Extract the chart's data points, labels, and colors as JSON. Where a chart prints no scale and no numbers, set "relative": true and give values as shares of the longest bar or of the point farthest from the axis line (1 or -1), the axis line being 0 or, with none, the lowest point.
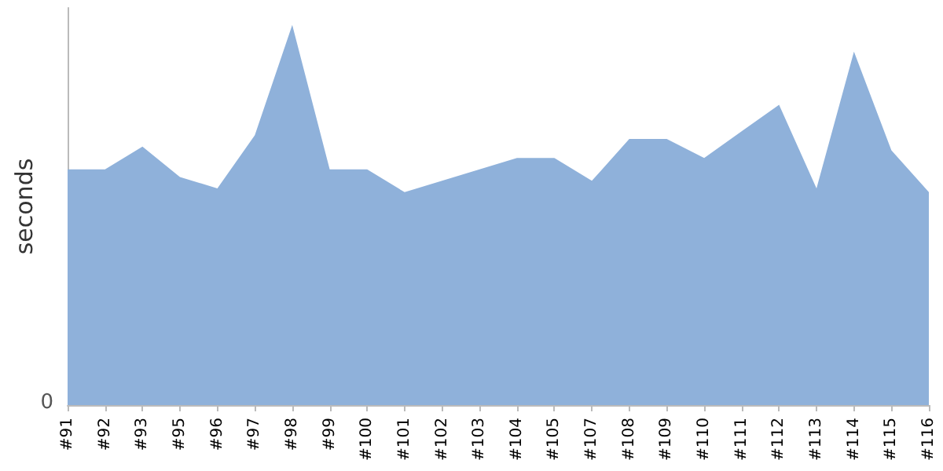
{
  "chart_data": {
    "type": "area",
    "ylabel": "seconds",
    "relative": true,
    "color": "#8fb1da",
    "annotations": [
      "0"
    ],
    "categories": [
      "#91",
      "#92",
      "#93",
      "#95",
      "#96",
      "#97",
      "#98",
      "#99",
      "#100",
      "#101",
      "#102",
      "#103",
      "#104",
      "#105",
      "#107",
      "#108",
      "#109",
      "#110",
      "#111",
      "#112",
      "#113",
      "#114",
      "#115",
      "#116"
    ],
    "values": [
      0.62,
      0.62,
      0.68,
      0.6,
      0.57,
      0.71,
      1,
      0.62,
      0.62,
      0.56,
      0.59,
      0.62,
      0.65,
      0.65,
      0.59,
      0.7,
      0.7,
      0.65,
      0.72,
      0.79,
      0.57,
      0.93,
      0.67,
      0.56
    ]
  }
}
